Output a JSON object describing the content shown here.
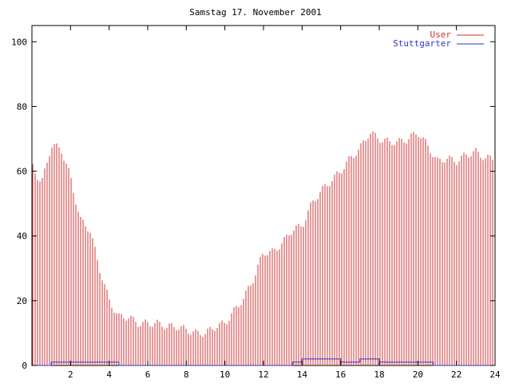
{
  "chart_data": {
    "type": "bar",
    "title": "Samstag 17. November 2001",
    "xlabel": "",
    "ylabel": "",
    "xlim": [
      0,
      24
    ],
    "ylim": [
      0,
      105
    ],
    "x_ticks": [
      "2",
      "4",
      "6",
      "8",
      "10",
      "12",
      "14",
      "16",
      "18",
      "20",
      "22",
      "24"
    ],
    "y_ticks": [
      "0",
      "20",
      "40",
      "60",
      "80",
      "100"
    ],
    "legend_position": "top-right",
    "grid": false,
    "series": [
      {
        "name": "User",
        "style": "impulses",
        "color": "#cc3333",
        "points": [
          [
            0.0,
            62
          ],
          [
            0.5,
            56
          ],
          [
            1.0,
            68
          ],
          [
            1.5,
            67
          ],
          [
            2.0,
            58
          ],
          [
            2.5,
            45
          ],
          [
            3.0,
            42
          ],
          [
            3.5,
            30
          ],
          [
            4.0,
            20
          ],
          [
            4.5,
            15
          ],
          [
            5.0,
            15
          ],
          [
            5.5,
            13
          ],
          [
            6.0,
            13
          ],
          [
            6.5,
            13
          ],
          [
            7.0,
            12
          ],
          [
            7.5,
            12
          ],
          [
            8.0,
            11
          ],
          [
            8.5,
            10
          ],
          [
            9.0,
            10
          ],
          [
            9.5,
            12
          ],
          [
            10.0,
            13
          ],
          [
            10.5,
            17
          ],
          [
            11.0,
            21
          ],
          [
            11.5,
            27
          ],
          [
            12.0,
            35
          ],
          [
            12.5,
            35
          ],
          [
            13.0,
            38
          ],
          [
            13.5,
            42
          ],
          [
            14.0,
            43
          ],
          [
            14.5,
            50
          ],
          [
            15.0,
            54
          ],
          [
            15.5,
            57
          ],
          [
            16.0,
            60
          ],
          [
            16.5,
            64
          ],
          [
            17.0,
            67
          ],
          [
            17.5,
            72
          ],
          [
            18.0,
            70
          ],
          [
            18.5,
            69
          ],
          [
            19.0,
            69
          ],
          [
            19.5,
            70
          ],
          [
            20.0,
            72
          ],
          [
            20.5,
            68
          ],
          [
            21.0,
            63
          ],
          [
            21.5,
            64
          ],
          [
            22.0,
            63
          ],
          [
            22.5,
            65
          ],
          [
            23.0,
            66
          ],
          [
            23.5,
            64
          ],
          [
            24.0,
            64
          ]
        ]
      },
      {
        "name": "Stuttgarter",
        "style": "line",
        "color": "#3333cc",
        "points": [
          [
            0,
            0
          ],
          [
            1,
            0
          ],
          [
            1,
            1
          ],
          [
            4.5,
            1
          ],
          [
            4.5,
            0
          ],
          [
            13.5,
            0
          ],
          [
            13.5,
            1
          ],
          [
            14,
            1
          ],
          [
            14,
            2
          ],
          [
            16,
            2
          ],
          [
            16,
            1
          ],
          [
            17,
            1
          ],
          [
            17,
            2
          ],
          [
            18,
            2
          ],
          [
            18,
            1
          ],
          [
            20.8,
            1
          ],
          [
            20.8,
            0
          ],
          [
            24,
            0
          ]
        ]
      }
    ]
  }
}
